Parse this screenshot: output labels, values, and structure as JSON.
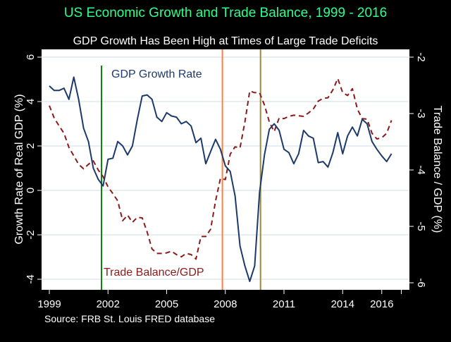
{
  "chart_data": {
    "type": "line",
    "title": "US Economic Growth and Trade Balance, 1999 - 2016",
    "subtitle": "GDP Growth Has Been High at Times of Large Trade Deficits",
    "note": "Source: FRB St. Louis FRED database",
    "xlabel": "",
    "ylabel_left": "Growth Rate of Real GDP (%)",
    "ylabel_right": "Trade Balance / GDP (%)",
    "x_start": "1999Q1",
    "x_frequency": "quarterly",
    "xlim": [
      1998.6,
      2018.0
    ],
    "xticks": [
      {
        "value": 1999,
        "label": "1999"
      },
      {
        "value": 2002,
        "label": "2002"
      },
      {
        "value": 2005,
        "label": "2005"
      },
      {
        "value": 2008,
        "label": "2008"
      },
      {
        "value": 2011,
        "label": "2011"
      },
      {
        "value": 2014,
        "label": "2014"
      },
      {
        "value": 2016,
        "label": "2016"
      },
      {
        "value": 2017,
        "label": ""
      }
    ],
    "ylim_left": [
      -4.35,
      6.35
    ],
    "yticks_left": [
      -4,
      -2,
      0,
      2,
      4,
      6
    ],
    "ylim_right": [
      -6.1,
      -1.9
    ],
    "yticks_right": [
      -6,
      -5,
      -4,
      -3,
      -2
    ],
    "grid": true,
    "colors": {
      "title": "#2bff8a",
      "gdp": "#1b3a6b",
      "trade": "#8b1a1a",
      "line_2001": "#0a7a0a",
      "line_2007": "#ff7f3a",
      "line_2009": "#a08a3a",
      "grid": "#dde8ee"
    },
    "series": [
      {
        "name": "GDP Growth Rate",
        "axis": "left",
        "style": "solid",
        "values": [
          4.7,
          4.5,
          4.5,
          4.6,
          4.1,
          5.1,
          4.1,
          2.8,
          2.2,
          1.0,
          0.5,
          0.2,
          1.4,
          1.45,
          2.2,
          2.0,
          1.6,
          2.0,
          3.2,
          4.25,
          4.3,
          4.1,
          3.3,
          3.1,
          3.5,
          3.35,
          3.3,
          3.0,
          3.1,
          2.9,
          2.15,
          2.35,
          1.2,
          1.75,
          2.3,
          1.85,
          1.1,
          0.85,
          -0.25,
          -2.5,
          -3.4,
          -4.1,
          -3.4,
          -0.1,
          1.6,
          2.75,
          3.0,
          2.7,
          1.85,
          1.7,
          1.2,
          1.65,
          2.7,
          2.45,
          2.35,
          1.25,
          1.3,
          1.05,
          1.7,
          2.6,
          1.65,
          2.45,
          2.85,
          2.45,
          3.2,
          3.0,
          2.2,
          1.85,
          1.55,
          1.3,
          1.65
        ]
      },
      {
        "name": "Trade Balance/GDP",
        "axis": "right",
        "style": "dashed",
        "values": [
          -2.86,
          -3.08,
          -3.22,
          -3.35,
          -3.6,
          -3.75,
          -3.9,
          -3.98,
          -3.9,
          -3.84,
          -4.0,
          -4.12,
          -4.3,
          -4.42,
          -4.55,
          -4.9,
          -4.8,
          -4.93,
          -4.84,
          -4.85,
          -5.1,
          -5.4,
          -5.48,
          -5.48,
          -5.47,
          -5.44,
          -5.5,
          -5.54,
          -5.48,
          -5.5,
          -5.58,
          -5.18,
          -5.18,
          -5.05,
          -4.55,
          -4.15,
          -4.17,
          -3.72,
          -3.59,
          -3.61,
          -3.15,
          -2.6,
          -2.63,
          -2.63,
          -2.85,
          -3.15,
          -3.32,
          -3.08,
          -3.09,
          -3.05,
          -3.03,
          -3.04,
          -3.05,
          -2.99,
          -2.92,
          -2.78,
          -2.73,
          -2.72,
          -2.58,
          -2.38,
          -2.63,
          -2.68,
          -2.56,
          -2.92,
          -3.09,
          -3.1,
          -3.35,
          -3.45,
          -3.43,
          -3.35,
          -3.12
        ]
      }
    ],
    "vertical_lines": [
      {
        "x": 2001.67,
        "color_key": "line_2001",
        "partial": true
      },
      {
        "x": 2007.85,
        "color_key": "line_2007",
        "partial": false
      },
      {
        "x": 2009.8,
        "color_key": "line_2009",
        "partial": false
      }
    ]
  }
}
